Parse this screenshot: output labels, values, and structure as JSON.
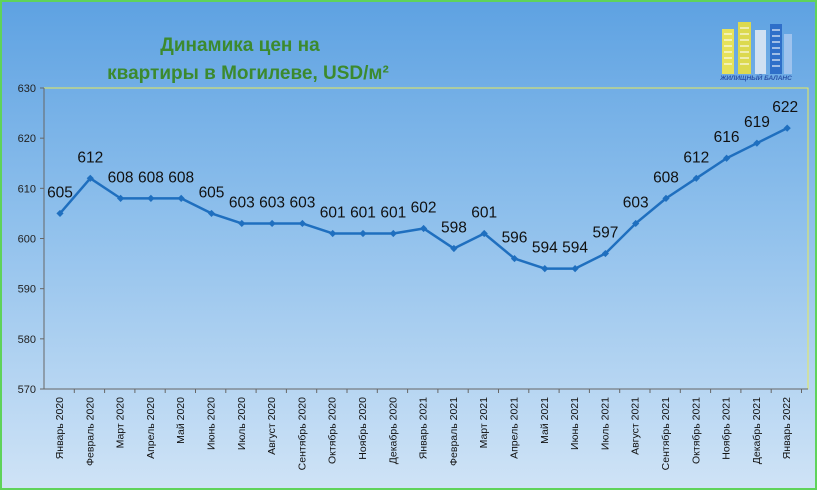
{
  "chart_data": {
    "type": "line",
    "title": "Динамика цен на квартиры в Могилеве, USD/м²",
    "title_lines": [
      "Динамика цен на",
      "квартиры в Могилеве, USD/м²"
    ],
    "categories": [
      "Январь 2020",
      "Февраль 2020",
      "Март 2020",
      "Апрель 2020",
      "Май 2020",
      "Июнь 2020",
      "Июль 2020",
      "Август 2020",
      "Сентябрь 2020",
      "Октябрь 2020",
      "Ноябрь 2020",
      "Декабрь 2020",
      "Январь 2021",
      "Февраль 2021",
      "Март 2021",
      "Апрель 2021",
      "Май 2021",
      "Июнь 2021",
      "Июль 2021",
      "Август 2021",
      "Сентябрь 2021",
      "Октябрь 2021",
      "Ноябрь 2021",
      "Декабрь 2021",
      "Январь 2022"
    ],
    "series": [
      {
        "values": [
          605,
          612,
          608,
          608,
          608,
          605,
          603,
          603,
          603,
          601,
          601,
          601,
          602,
          598,
          601,
          596,
          594,
          594,
          597,
          603,
          608,
          612,
          616,
          619,
          622
        ]
      }
    ],
    "ylim": [
      570,
      630
    ],
    "yticks": [
      570,
      580,
      590,
      600,
      610,
      620,
      630
    ],
    "xlabel": "",
    "ylabel": "",
    "grid": false,
    "colors": {
      "line": "#1f6fbf",
      "plot_border": "#e8ea5a"
    }
  },
  "logo": {
    "text": "ЖИЛИЩНЫЙ БАЛАНС"
  }
}
